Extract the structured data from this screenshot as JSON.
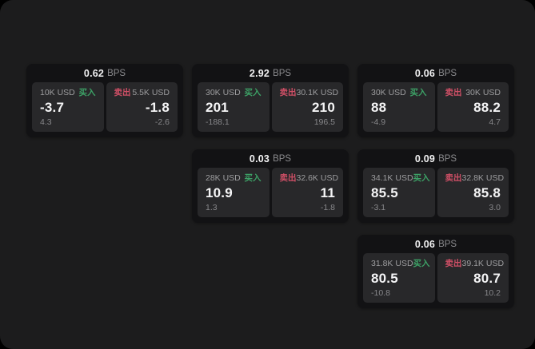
{
  "labels": {
    "buy": "买入",
    "sell": "卖出",
    "bps": "BPS"
  },
  "colors": {
    "buy": "#3da166",
    "sell": "#cf4f66",
    "page_background": "#000000",
    "panel_background": "#1c1c1d",
    "card_background": "#121214",
    "quote_background": "#28282a"
  },
  "cards": [
    {
      "row": 1,
      "col": 1,
      "bps": "0.62",
      "buy": {
        "amount": "10K USD",
        "price": "-3.7",
        "delta": "4.3"
      },
      "sell": {
        "amount": "5.5K USD",
        "price": "-1.8",
        "delta": "-2.6"
      }
    },
    {
      "row": 1,
      "col": 2,
      "bps": "2.92",
      "buy": {
        "amount": "30K USD",
        "price": "201",
        "delta": "-188.1"
      },
      "sell": {
        "amount": "30.1K USD",
        "price": "210",
        "delta": "196.5"
      }
    },
    {
      "row": 1,
      "col": 3,
      "bps": "0.06",
      "buy": {
        "amount": "30K USD",
        "price": "88",
        "delta": "-4.9"
      },
      "sell": {
        "amount": "30K USD",
        "price": "88.2",
        "delta": "4.7"
      }
    },
    {
      "row": 2,
      "col": 2,
      "bps": "0.03",
      "buy": {
        "amount": "28K USD",
        "price": "10.9",
        "delta": "1.3"
      },
      "sell": {
        "amount": "32.6K USD",
        "price": "11",
        "delta": "-1.8"
      }
    },
    {
      "row": 2,
      "col": 3,
      "bps": "0.09",
      "buy": {
        "amount": "34.1K USD",
        "price": "85.5",
        "delta": "-3.1"
      },
      "sell": {
        "amount": "32.8K USD",
        "price": "85.8",
        "delta": "3.0"
      }
    },
    {
      "row": 3,
      "col": 3,
      "bps": "0.06",
      "buy": {
        "amount": "31.8K USD",
        "price": "80.5",
        "delta": "-10.8"
      },
      "sell": {
        "amount": "39.1K USD",
        "price": "80.7",
        "delta": "10.2"
      }
    }
  ]
}
